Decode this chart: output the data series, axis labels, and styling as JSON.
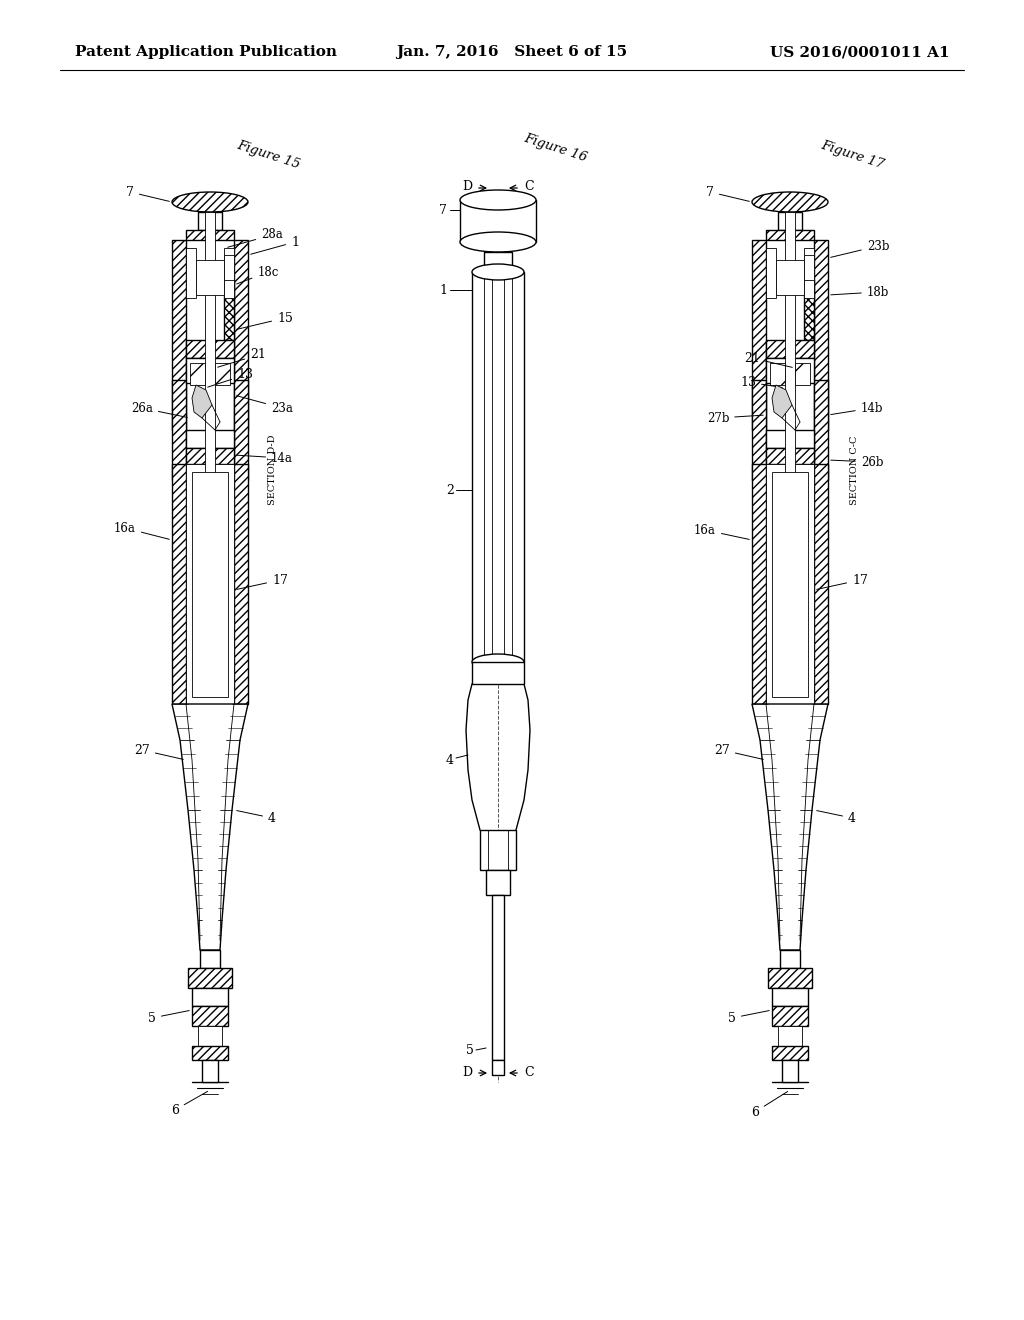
{
  "background_color": "#ffffff",
  "header_left": "Patent Application Publication",
  "header_center": "Jan. 7, 2016   Sheet 6 of 15",
  "header_right": "US 2016/0001011 A1",
  "header_fontsize": 11,
  "fig_width": 10.24,
  "fig_height": 13.2,
  "line_color": "#000000",
  "annotation_fontsize": 8.5
}
